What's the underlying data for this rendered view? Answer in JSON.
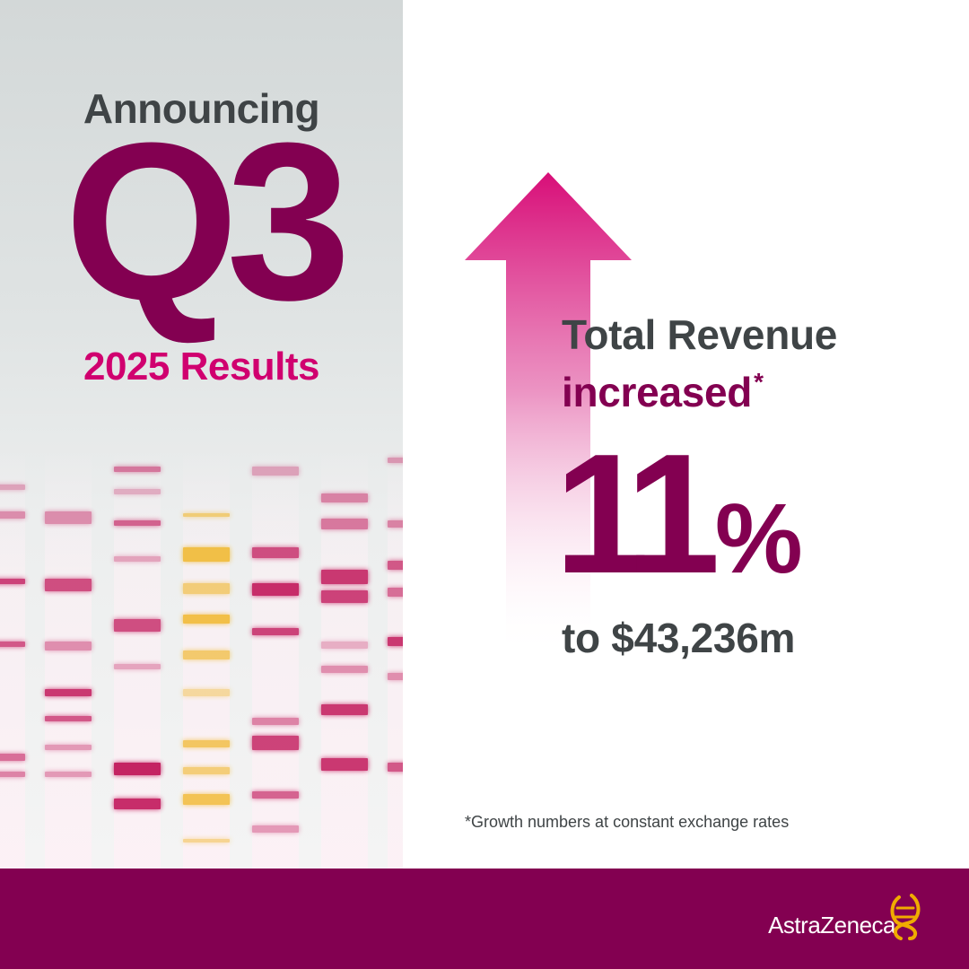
{
  "announcement": {
    "intro": "Announcing",
    "quarter": "Q3",
    "period": "2025 Results"
  },
  "revenue": {
    "line1": "Total Revenue",
    "line2": "increased",
    "asterisk": "*",
    "growth_number": "11",
    "growth_sign": "%",
    "amount": "to $43,236m"
  },
  "footnote": "*Growth numbers at constant exchange rates",
  "brand": {
    "name": "AstraZeneca",
    "logo_icon": "astrazeneca-symbol-icon"
  },
  "colors": {
    "brand_mulberry": "#830051",
    "magenta": "#d0006f",
    "charcoal": "#3f4446",
    "gold": "#f0ab00"
  }
}
